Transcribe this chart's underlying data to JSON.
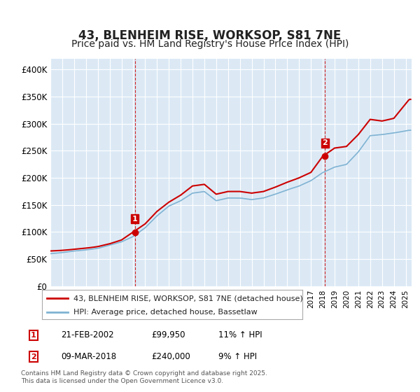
{
  "title": "43, BLENHEIM RISE, WORKSOP, S81 7NE",
  "subtitle": "Price paid vs. HM Land Registry's House Price Index (HPI)",
  "title_fontsize": 12,
  "subtitle_fontsize": 10,
  "background_color": "#ffffff",
  "plot_bg_color": "#dce9f5",
  "grid_color": "#ffffff",
  "hpi_color": "#7fb3d3",
  "price_color": "#cc0000",
  "annotation_line_color": "#cc0000",
  "ylim": [
    0,
    420000
  ],
  "yticks": [
    0,
    50000,
    100000,
    150000,
    200000,
    250000,
    300000,
    350000,
    400000
  ],
  "ytick_labels": [
    "£0",
    "£50K",
    "£100K",
    "£150K",
    "£200K",
    "£250K",
    "£300K",
    "£350K",
    "£400K"
  ],
  "legend_line1": "43, BLENHEIM RISE, WORKSOP, S81 7NE (detached house)",
  "legend_line2": "HPI: Average price, detached house, Bassetlaw",
  "annotation1_label": "1",
  "annotation1_date": "21-FEB-2002",
  "annotation1_price": "£99,950",
  "annotation1_hpi": "11% ↑ HPI",
  "annotation2_label": "2",
  "annotation2_date": "09-MAR-2018",
  "annotation2_price": "£240,000",
  "annotation2_hpi": "9% ↑ HPI",
  "footnote": "Contains HM Land Registry data © Crown copyright and database right 2025.\nThis data is licensed under the Open Government Licence v3.0.",
  "sale1_x": 2002.13,
  "sale1_y": 99950,
  "sale2_x": 2018.19,
  "sale2_y": 240000,
  "xmin": 1995,
  "xmax": 2025.5
}
